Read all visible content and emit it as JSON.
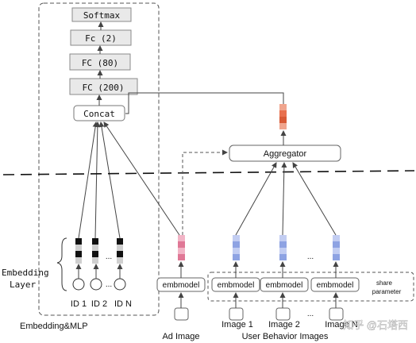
{
  "left_block": {
    "softmax": "Softmax",
    "fc2": "Fc (2)",
    "fc80": "FC (80)",
    "fc200": "FC (200)",
    "concat": "Concat",
    "embedding_layer_line1": "Embedding",
    "embedding_layer_line2": "Layer",
    "dots": "...",
    "ids": [
      "ID 1",
      "ID 2",
      "ID N"
    ],
    "caption": "Embedding&MLP"
  },
  "right_block": {
    "aggregator": "Aggregator",
    "embmodel": "embmodel",
    "dots": "...",
    "share_line1": "share",
    "share_line2": "parameter",
    "ad_image": "Ad Image",
    "images": [
      "Image 1",
      "Image 2",
      "Image N"
    ],
    "caption": "User Behavior Images"
  },
  "watermark": "知乎 @石塔西",
  "colors": {
    "box_fill": "#e9e9e9",
    "box_stroke": "#8a8a8a",
    "ad_embedding": "#e07896",
    "user_embedding": "#8ea3e3",
    "aggregated": "#e8704e"
  }
}
